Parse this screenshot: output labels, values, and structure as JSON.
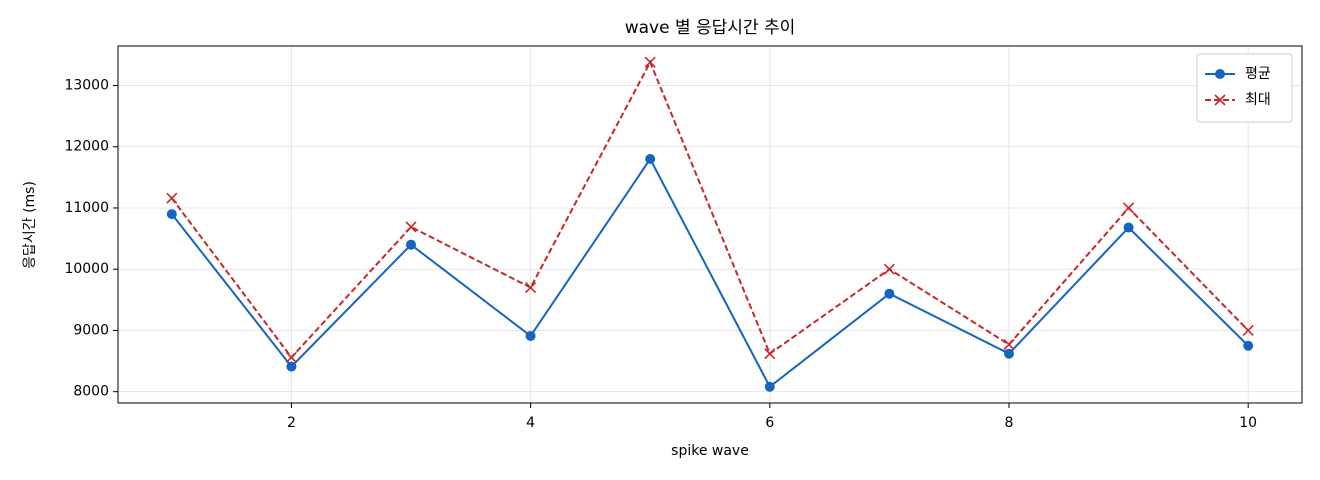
{
  "chart_data": {
    "type": "line",
    "title": "wave 별 응답시간 추이",
    "xlabel": "spike wave",
    "ylabel": "응답시간 (ms)",
    "x": [
      1,
      2,
      3,
      4,
      5,
      6,
      7,
      8,
      9,
      10
    ],
    "series": [
      {
        "name": "평균",
        "color": "#1565c0",
        "marker": "o",
        "dashed": false,
        "values": [
          10900,
          8410,
          10400,
          8910,
          11800,
          8080,
          9600,
          8620,
          10680,
          8750
        ]
      },
      {
        "name": "최대",
        "color": "#c62828",
        "marker": "x",
        "dashed": true,
        "values": [
          11160,
          8560,
          10690,
          9700,
          13380,
          8620,
          10000,
          8770,
          11000,
          9000
        ]
      }
    ],
    "xlim": [
      0.55,
      10.45
    ],
    "xticks": [
      2,
      4,
      6,
      8,
      10
    ],
    "ylim": [
      7815,
      13645
    ],
    "yticks": [
      8000,
      9000,
      10000,
      11000,
      12000,
      13000
    ],
    "grid": true,
    "legend": "upper right"
  }
}
